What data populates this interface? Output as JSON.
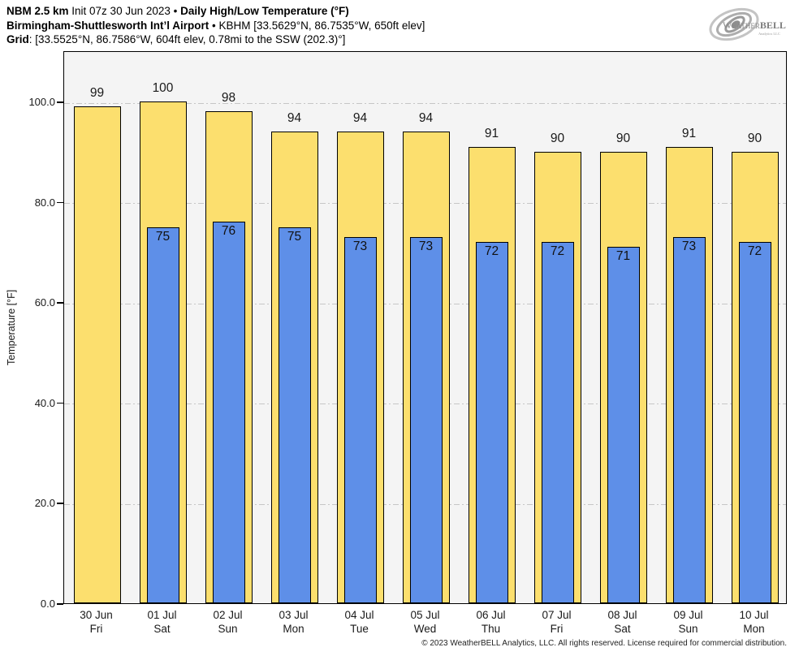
{
  "header": {
    "line1_bold": "NBM 2.5 km",
    "line1_mid": " Init 07z 30 Jun 2023 • ",
    "line1_bold2": "Daily High/Low Temperature (°F)",
    "line2_bold": "Birmingham-Shuttlesworth Int’l Airport",
    "line2_rest": " • KBHM [33.5629°N, 86.7535°W, 650ft elev]",
    "line3_bold": "Grid",
    "line3_rest": ": [33.5525°N, 86.7586°W, 604ft elev, 0.78mi to the SSW (202.3)°]"
  },
  "logo": {
    "part1": "Weather",
    "part2": "BELL",
    "sub": "Analytics LLC"
  },
  "chart_data": {
    "type": "bar",
    "title": "Daily High/Low Temperature (°F)",
    "ylabel": "Temperature [°F]",
    "ylim": [
      0,
      110
    ],
    "yticks": [
      0,
      20,
      40,
      60,
      80,
      100
    ],
    "ytick_labels": [
      "0.0",
      "20.0",
      "40.0",
      "60.0",
      "80.0",
      "100.0"
    ],
    "grid": "dash-dot horizontal at 20/40/60/80/100",
    "legend_position": "none",
    "categories_date": [
      "30 Jun",
      "01 Jul",
      "02 Jul",
      "03 Jul",
      "04 Jul",
      "05 Jul",
      "06 Jul",
      "07 Jul",
      "08 Jul",
      "09 Jul",
      "10 Jul"
    ],
    "categories_day": [
      "Fri",
      "Sat",
      "Sun",
      "Mon",
      "Tue",
      "Wed",
      "Thu",
      "Fri",
      "Sat",
      "Sun",
      "Mon"
    ],
    "series": [
      {
        "name": "High",
        "color": "#fcdf6e",
        "values": [
          99,
          100,
          98,
          94,
          94,
          94,
          91,
          90,
          90,
          91,
          90
        ]
      },
      {
        "name": "Low",
        "color": "#5e8fe8",
        "values": [
          null,
          75,
          76,
          75,
          73,
          73,
          72,
          72,
          71,
          73,
          72
        ]
      }
    ]
  },
  "colors": {
    "high_fill": "#fcdf6e",
    "low_fill": "#5e8fe8",
    "bar_border": "#000000",
    "plot_bg": "#f4f4f4",
    "gridline": "#c6c6c6"
  },
  "footer": "© 2023 WeatherBELL Analytics, LLC. All rights reserved. License required for commercial distribution."
}
